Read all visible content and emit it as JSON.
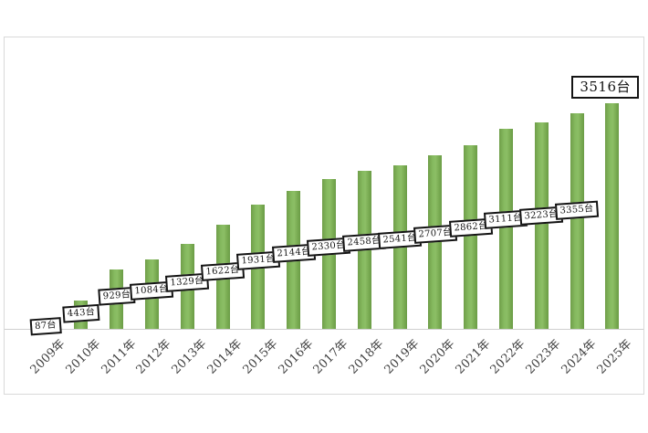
{
  "chart_data": {
    "type": "bar",
    "title": "",
    "xlabel": "",
    "ylabel": "",
    "unit": "台",
    "categories": [
      "2009年",
      "2010年",
      "2011年",
      "2012年",
      "2013年",
      "2014年",
      "2015年",
      "2016年",
      "2017年",
      "2018年",
      "2019年",
      "2020年",
      "2021年",
      "2022年",
      "2023年",
      "2024年",
      "2025年"
    ],
    "values": [
      87,
      443,
      929,
      1084,
      1329,
      1622,
      1931,
      2144,
      2330,
      2458,
      2541,
      2707,
      2862,
      3111,
      3223,
      3355,
      3516
    ],
    "value_labels": [
      "87台",
      "443台",
      "929台",
      "1084台",
      "1329台",
      "1622台",
      "1931台",
      "2144台",
      "2330台",
      "2458台",
      "2541台",
      "2707台",
      "2862台",
      "3111台",
      "3223台",
      "3355台",
      "3516台"
    ],
    "ylim": [
      0,
      3700
    ],
    "grid": false,
    "legend": "none",
    "highlight_last_label": true,
    "colors": {
      "bar_fill": "#7cae57",
      "bar_edge": "#6a9c45",
      "label_box_bg": "#ffffff",
      "label_box_border": "#141414",
      "label_text": "#141414",
      "axis_line": "#cfcfcf",
      "frame_border": "#d9d9d9",
      "tick_text": "#3f3f3f"
    }
  }
}
